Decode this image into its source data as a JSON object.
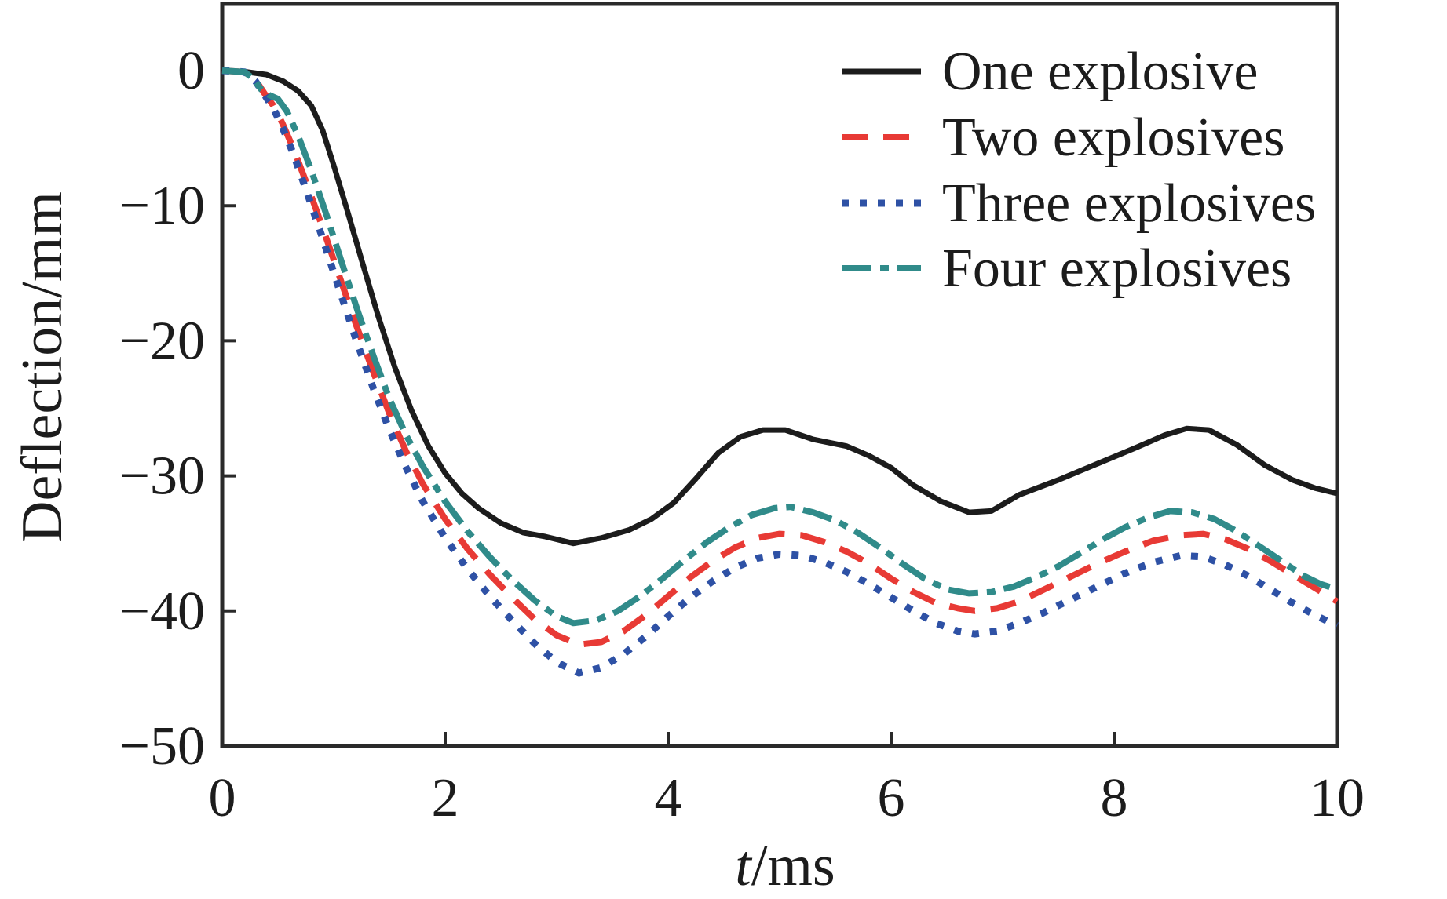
{
  "chart_data": {
    "type": "line",
    "title": "",
    "xlabel": "t/ms",
    "xlabel_parts": [
      "t",
      "/ms"
    ],
    "ylabel": "Deflection/mm",
    "xlim": [
      0,
      10
    ],
    "ylim": [
      -50,
      5
    ],
    "grid": false,
    "legend_position": "top-right",
    "xticks": [
      0,
      2,
      4,
      6,
      8,
      10
    ],
    "yticks": [
      0,
      -10,
      -20,
      -30,
      -40,
      -50
    ],
    "xtick_labels": [
      "0",
      "2",
      "4",
      "6",
      "8",
      "10"
    ],
    "ytick_labels": [
      "0",
      "−10",
      "−20",
      "−30",
      "−40",
      "−50"
    ],
    "series": [
      {
        "name": "One explosive",
        "color": "#1c1c1c",
        "style": "solid",
        "points": [
          [
            0,
            0
          ],
          [
            0.22,
            -0.1
          ],
          [
            0.4,
            -0.3
          ],
          [
            0.55,
            -0.8
          ],
          [
            0.68,
            -1.5
          ],
          [
            0.8,
            -2.6
          ],
          [
            0.9,
            -4.4
          ],
          [
            1.0,
            -7.0
          ],
          [
            1.12,
            -10.3
          ],
          [
            1.25,
            -14.0
          ],
          [
            1.4,
            -18.2
          ],
          [
            1.55,
            -22.0
          ],
          [
            1.7,
            -25.2
          ],
          [
            1.85,
            -27.8
          ],
          [
            2.0,
            -29.8
          ],
          [
            2.15,
            -31.3
          ],
          [
            2.3,
            -32.4
          ],
          [
            2.5,
            -33.5
          ],
          [
            2.7,
            -34.2
          ],
          [
            2.9,
            -34.5
          ],
          [
            3.15,
            -35.0
          ],
          [
            3.4,
            -34.6
          ],
          [
            3.65,
            -34.0
          ],
          [
            3.85,
            -33.2
          ],
          [
            4.05,
            -32.0
          ],
          [
            4.25,
            -30.2
          ],
          [
            4.45,
            -28.3
          ],
          [
            4.65,
            -27.1
          ],
          [
            4.85,
            -26.6
          ],
          [
            5.05,
            -26.6
          ],
          [
            5.3,
            -27.3
          ],
          [
            5.6,
            -27.8
          ],
          [
            5.8,
            -28.5
          ],
          [
            6.0,
            -29.4
          ],
          [
            6.2,
            -30.7
          ],
          [
            6.45,
            -31.9
          ],
          [
            6.7,
            -32.7
          ],
          [
            6.9,
            -32.6
          ],
          [
            7.15,
            -31.4
          ],
          [
            7.5,
            -30.3
          ],
          [
            7.85,
            -29.1
          ],
          [
            8.2,
            -27.9
          ],
          [
            8.45,
            -27.0
          ],
          [
            8.65,
            -26.5
          ],
          [
            8.85,
            -26.6
          ],
          [
            9.1,
            -27.7
          ],
          [
            9.35,
            -29.2
          ],
          [
            9.6,
            -30.3
          ],
          [
            9.8,
            -30.9
          ],
          [
            10,
            -31.3
          ]
        ]
      },
      {
        "name": "Two explosives",
        "color": "#e83a35",
        "style": "dashed",
        "points": [
          [
            0,
            0
          ],
          [
            0.2,
            -0.1
          ],
          [
            0.3,
            -0.7
          ],
          [
            0.38,
            -1.7
          ],
          [
            0.46,
            -2.6
          ],
          [
            0.54,
            -3.9
          ],
          [
            0.64,
            -5.8
          ],
          [
            0.76,
            -8.4
          ],
          [
            0.9,
            -11.6
          ],
          [
            1.05,
            -15.2
          ],
          [
            1.2,
            -18.8
          ],
          [
            1.35,
            -22.2
          ],
          [
            1.5,
            -25.4
          ],
          [
            1.65,
            -28.2
          ],
          [
            1.8,
            -30.6
          ],
          [
            2.0,
            -33.2
          ],
          [
            2.2,
            -35.4
          ],
          [
            2.4,
            -37.3
          ],
          [
            2.6,
            -39.0
          ],
          [
            2.8,
            -40.6
          ],
          [
            3.0,
            -41.8
          ],
          [
            3.2,
            -42.5
          ],
          [
            3.4,
            -42.3
          ],
          [
            3.6,
            -41.5
          ],
          [
            3.8,
            -40.3
          ],
          [
            4.0,
            -38.9
          ],
          [
            4.2,
            -37.5
          ],
          [
            4.4,
            -36.3
          ],
          [
            4.6,
            -35.3
          ],
          [
            4.8,
            -34.6
          ],
          [
            5.0,
            -34.3
          ],
          [
            5.2,
            -34.4
          ],
          [
            5.4,
            -34.9
          ],
          [
            5.6,
            -35.6
          ],
          [
            5.8,
            -36.5
          ],
          [
            6.0,
            -37.6
          ],
          [
            6.2,
            -38.6
          ],
          [
            6.4,
            -39.4
          ],
          [
            6.6,
            -39.8
          ],
          [
            6.75,
            -40.0
          ],
          [
            6.95,
            -39.8
          ],
          [
            7.15,
            -39.3
          ],
          [
            7.35,
            -38.5
          ],
          [
            7.6,
            -37.5
          ],
          [
            7.85,
            -36.5
          ],
          [
            8.1,
            -35.6
          ],
          [
            8.35,
            -34.8
          ],
          [
            8.6,
            -34.4
          ],
          [
            8.8,
            -34.3
          ],
          [
            9.0,
            -34.7
          ],
          [
            9.2,
            -35.4
          ],
          [
            9.4,
            -36.3
          ],
          [
            9.6,
            -37.3
          ],
          [
            9.8,
            -38.3
          ],
          [
            10,
            -39.3
          ]
        ]
      },
      {
        "name": "Three explosives",
        "color": "#2e51a5",
        "style": "dotted",
        "points": [
          [
            0,
            0
          ],
          [
            0.2,
            -0.1
          ],
          [
            0.3,
            -0.8
          ],
          [
            0.38,
            -1.8
          ],
          [
            0.46,
            -2.8
          ],
          [
            0.54,
            -4.2
          ],
          [
            0.64,
            -6.2
          ],
          [
            0.76,
            -9.0
          ],
          [
            0.9,
            -12.4
          ],
          [
            1.05,
            -16.2
          ],
          [
            1.2,
            -19.9
          ],
          [
            1.35,
            -23.4
          ],
          [
            1.5,
            -26.6
          ],
          [
            1.65,
            -29.4
          ],
          [
            1.8,
            -31.9
          ],
          [
            2.0,
            -34.6
          ],
          [
            2.2,
            -36.9
          ],
          [
            2.4,
            -38.9
          ],
          [
            2.6,
            -40.7
          ],
          [
            2.8,
            -42.4
          ],
          [
            3.0,
            -43.8
          ],
          [
            3.2,
            -44.6
          ],
          [
            3.4,
            -44.2
          ],
          [
            3.6,
            -43.2
          ],
          [
            3.8,
            -41.9
          ],
          [
            4.0,
            -40.4
          ],
          [
            4.2,
            -39.0
          ],
          [
            4.4,
            -37.8
          ],
          [
            4.6,
            -36.8
          ],
          [
            4.8,
            -36.1
          ],
          [
            5.0,
            -35.8
          ],
          [
            5.2,
            -35.9
          ],
          [
            5.4,
            -36.4
          ],
          [
            5.6,
            -37.1
          ],
          [
            5.8,
            -38.0
          ],
          [
            6.0,
            -39.0
          ],
          [
            6.2,
            -40.0
          ],
          [
            6.4,
            -40.9
          ],
          [
            6.6,
            -41.5
          ],
          [
            6.75,
            -41.7
          ],
          [
            6.95,
            -41.5
          ],
          [
            7.15,
            -40.9
          ],
          [
            7.35,
            -40.2
          ],
          [
            7.6,
            -39.2
          ],
          [
            7.85,
            -38.2
          ],
          [
            8.1,
            -37.2
          ],
          [
            8.35,
            -36.4
          ],
          [
            8.6,
            -35.9
          ],
          [
            8.8,
            -36.0
          ],
          [
            9.0,
            -36.6
          ],
          [
            9.2,
            -37.4
          ],
          [
            9.4,
            -38.4
          ],
          [
            9.6,
            -39.4
          ],
          [
            9.8,
            -40.3
          ],
          [
            10,
            -41.1
          ]
        ]
      },
      {
        "name": "Four explosives",
        "color": "#308b8a",
        "style": "dashdot",
        "points": [
          [
            0,
            0
          ],
          [
            0.2,
            -0.1
          ],
          [
            0.28,
            -0.6
          ],
          [
            0.35,
            -1.4
          ],
          [
            0.42,
            -1.8
          ],
          [
            0.5,
            -2.1
          ],
          [
            0.58,
            -3.0
          ],
          [
            0.68,
            -4.8
          ],
          [
            0.8,
            -7.4
          ],
          [
            0.94,
            -10.8
          ],
          [
            1.08,
            -14.4
          ],
          [
            1.22,
            -17.9
          ],
          [
            1.36,
            -21.2
          ],
          [
            1.5,
            -24.3
          ],
          [
            1.65,
            -27.0
          ],
          [
            1.8,
            -29.3
          ],
          [
            2.0,
            -31.9
          ],
          [
            2.2,
            -34.1
          ],
          [
            2.4,
            -36.0
          ],
          [
            2.6,
            -37.7
          ],
          [
            2.8,
            -39.2
          ],
          [
            3.0,
            -40.4
          ],
          [
            3.15,
            -40.9
          ],
          [
            3.35,
            -40.7
          ],
          [
            3.55,
            -40.0
          ],
          [
            3.75,
            -38.9
          ],
          [
            3.95,
            -37.6
          ],
          [
            4.15,
            -36.2
          ],
          [
            4.35,
            -34.9
          ],
          [
            4.55,
            -33.8
          ],
          [
            4.75,
            -32.9
          ],
          [
            4.95,
            -32.4
          ],
          [
            5.1,
            -32.3
          ],
          [
            5.3,
            -32.7
          ],
          [
            5.5,
            -33.3
          ],
          [
            5.7,
            -34.2
          ],
          [
            5.9,
            -35.3
          ],
          [
            6.1,
            -36.5
          ],
          [
            6.3,
            -37.6
          ],
          [
            6.5,
            -38.4
          ],
          [
            6.7,
            -38.7
          ],
          [
            6.9,
            -38.6
          ],
          [
            7.1,
            -38.2
          ],
          [
            7.3,
            -37.5
          ],
          [
            7.5,
            -36.7
          ],
          [
            7.7,
            -35.7
          ],
          [
            7.9,
            -34.7
          ],
          [
            8.1,
            -33.8
          ],
          [
            8.3,
            -33.1
          ],
          [
            8.5,
            -32.6
          ],
          [
            8.7,
            -32.7
          ],
          [
            8.9,
            -33.2
          ],
          [
            9.1,
            -34.1
          ],
          [
            9.3,
            -35.2
          ],
          [
            9.5,
            -36.3
          ],
          [
            9.7,
            -37.4
          ],
          [
            9.85,
            -38.0
          ],
          [
            10,
            -38.4
          ]
        ]
      }
    ]
  }
}
